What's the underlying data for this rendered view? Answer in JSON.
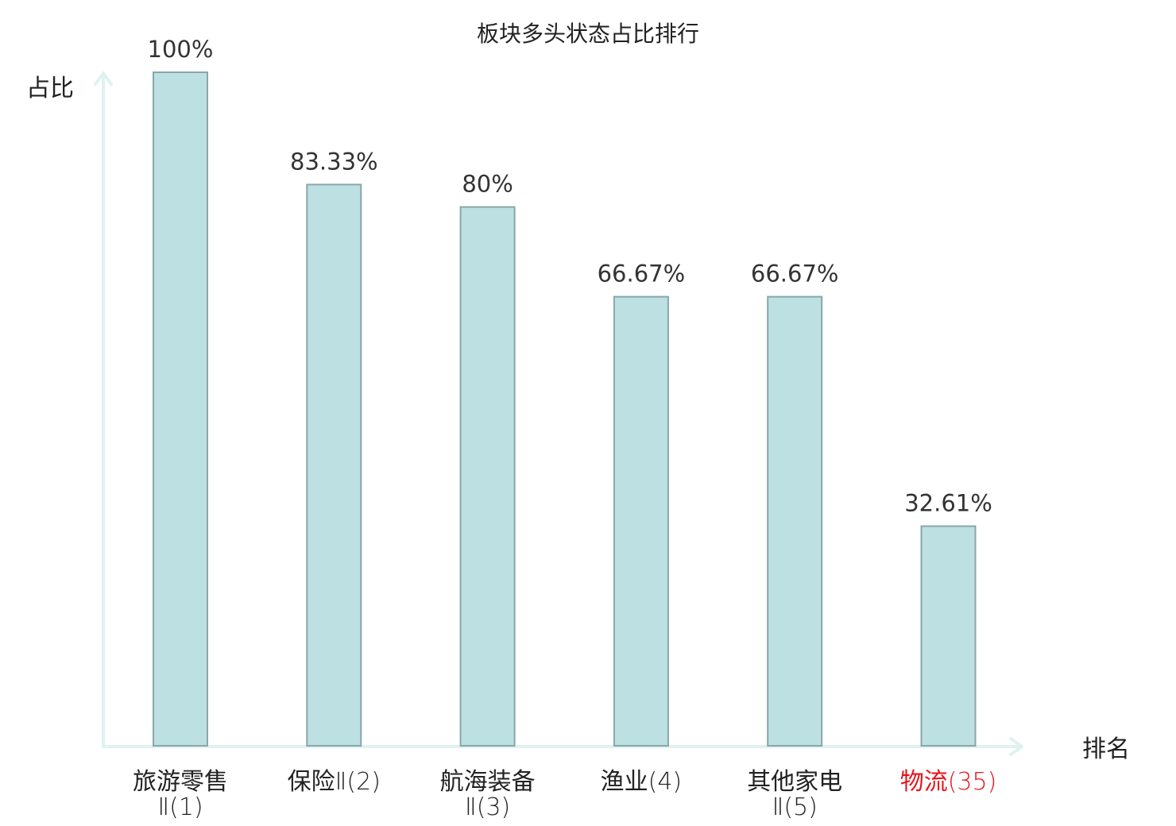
{
  "chart_data": {
    "type": "bar",
    "title": "板块多头状态占比排行",
    "ylabel": "占比",
    "xlabel": "排名",
    "ylim": [
      0,
      100
    ],
    "grid": false,
    "categories": [
      {
        "main": "旅游零售",
        "suffix": "Ⅱ(1)",
        "wrap": true,
        "highlight": false
      },
      {
        "main": "保险",
        "suffix": "Ⅱ(2)",
        "wrap": false,
        "highlight": false
      },
      {
        "main": "航海装备",
        "suffix": "Ⅱ(3)",
        "wrap": true,
        "highlight": false
      },
      {
        "main": "渔业",
        "suffix": "(4)",
        "wrap": false,
        "highlight": false
      },
      {
        "main": "其他家电",
        "suffix": "Ⅱ(5)",
        "wrap": true,
        "highlight": false
      },
      {
        "main": "物流",
        "suffix": "(35)",
        "wrap": false,
        "highlight": true
      }
    ],
    "values": [
      100,
      83.33,
      80,
      66.67,
      66.67,
      32.61
    ],
    "value_labels": [
      "100%",
      "83.33%",
      "80%",
      "66.67%",
      "66.67%",
      "32.61%"
    ]
  },
  "colors": {
    "bar_fill": "#bde0e3",
    "bar_stroke": "#8aa6a9",
    "axis": "#e0f2ef",
    "text": "#222222",
    "value_text": "#333333",
    "cat_text": "#222222",
    "highlight": "#e8141b"
  }
}
